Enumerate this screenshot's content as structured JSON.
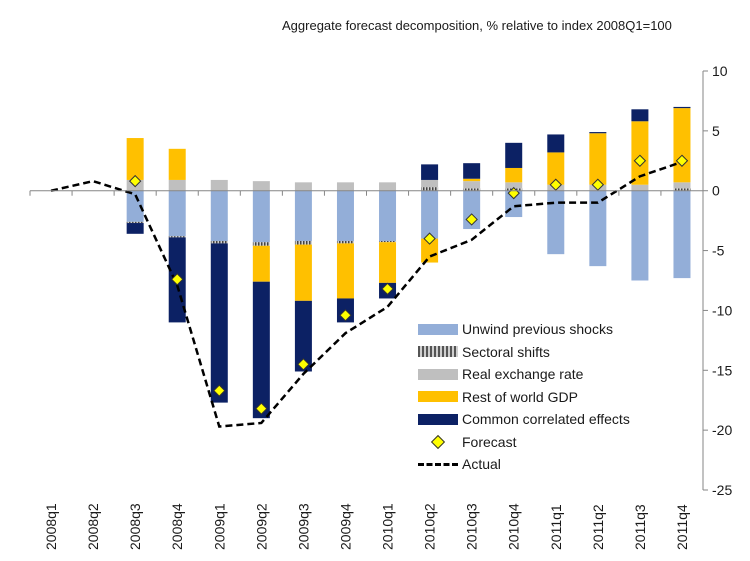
{
  "chart_data": {
    "type": "bar",
    "title": "Aggregate forecast decomposition, % relative to index 2008Q1=100",
    "categories": [
      "2008q1",
      "2008q2",
      "2008q3",
      "2008q4",
      "2009q1",
      "2009q2",
      "2009q3",
      "2009q4",
      "2010q1",
      "2010q2",
      "2010q3",
      "2010q4",
      "2011q1",
      "2011q2",
      "2011q3",
      "2011q4"
    ],
    "ylim": [
      -25,
      10
    ],
    "yticks": [
      10,
      5,
      0,
      -5,
      -10,
      -15,
      -20,
      -25
    ],
    "ytick_labels": [
      "10",
      "5",
      "0",
      "-5",
      "-10",
      "-15",
      "-20",
      "-25"
    ],
    "legend_position": "bottom-right inside plot",
    "stacked_series": [
      {
        "name": "Unwind previous shocks",
        "color": "#93aed8",
        "values": [
          0,
          0,
          -2.6,
          -3.8,
          -4.2,
          -4.3,
          -4.2,
          -4.2,
          -4.2,
          -4.0,
          -3.2,
          -2.2,
          -5.3,
          -6.3,
          -7.5,
          -7.3
        ]
      },
      {
        "name": "Sectoral shifts",
        "color": "#7a7a7a",
        "values": [
          0,
          0,
          -0.1,
          -0.1,
          -0.2,
          -0.3,
          -0.3,
          -0.2,
          -0.1,
          0.3,
          0.2,
          0.2,
          0.0,
          0.0,
          0.0,
          0.2
        ]
      },
      {
        "name": "Real exchange rate",
        "color": "#bfbfbf",
        "values": [
          0,
          0,
          0.9,
          0.9,
          0.9,
          0.8,
          0.7,
          0.7,
          0.7,
          0.6,
          0.6,
          0.5,
          0.5,
          0.5,
          0.5,
          0.5
        ]
      },
      {
        "name": "Rest of world GDP",
        "color": "#ffc000",
        "values": [
          0,
          0,
          3.5,
          2.6,
          0.0,
          -3.0,
          -4.7,
          -4.6,
          -3.4,
          -2.0,
          0.2,
          1.2,
          2.7,
          4.3,
          5.3,
          6.2
        ]
      },
      {
        "name": "Common correlated effects",
        "color": "#0c2164",
        "values": [
          0,
          0,
          -0.9,
          -7.1,
          -13.3,
          -11.4,
          -5.9,
          -2.0,
          -1.3,
          1.3,
          1.3,
          2.1,
          1.5,
          0.1,
          1.0,
          0.1
        ]
      }
    ],
    "forecast": {
      "name": "Forecast",
      "color": "#ffff00",
      "values": [
        null,
        null,
        0.8,
        -7.4,
        -16.7,
        -18.2,
        -14.5,
        -10.4,
        -8.2,
        -4.0,
        -2.4,
        -0.2,
        0.5,
        0.5,
        2.5,
        2.5
      ]
    },
    "actual": {
      "name": "Actual",
      "color": "#000000",
      "values": [
        0,
        0.8,
        -0.3,
        -7.9,
        -19.7,
        -19.4,
        -15.3,
        -11.9,
        -9.7,
        -5.5,
        -4.1,
        -1.3,
        -1.0,
        -1.0,
        1.2,
        2.4
      ]
    },
    "legend_order": [
      "Unwind previous shocks",
      "Sectoral shifts",
      "Real exchange rate",
      "Rest of world GDP",
      "Common correlated effects",
      "Forecast",
      "Actual"
    ]
  }
}
